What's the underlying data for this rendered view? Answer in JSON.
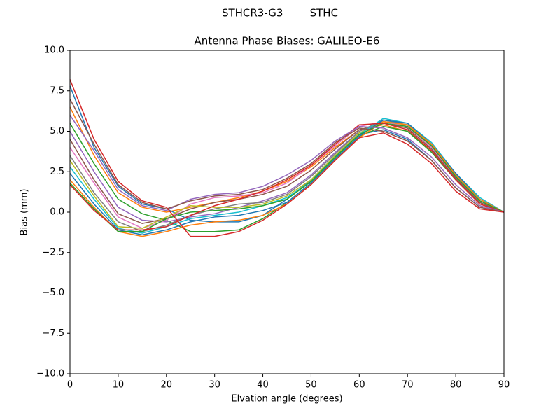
{
  "chart_data": {
    "type": "line",
    "suptitle": "STHCR3-G3        STHC",
    "title": "Antenna Phase Biases: GALILEO-E6",
    "xlabel": "Elvation angle (degrees)",
    "ylabel": "Bias (mm)",
    "x": [
      0,
      5,
      10,
      15,
      20,
      25,
      30,
      35,
      40,
      45,
      50,
      55,
      60,
      65,
      70,
      75,
      80,
      85,
      90
    ],
    "xlim": [
      0,
      90
    ],
    "xticks": [
      0,
      10,
      20,
      30,
      40,
      50,
      60,
      70,
      80,
      90
    ],
    "ylim": [
      -10,
      10
    ],
    "yticks": [
      {
        "value": -10,
        "label": "−10.0"
      },
      {
        "value": -7.5,
        "label": "−7.5"
      },
      {
        "value": -5,
        "label": "−5.0"
      },
      {
        "value": -2.5,
        "label": "−2.5"
      },
      {
        "value": 0,
        "label": "0.0"
      },
      {
        "value": 2.5,
        "label": "2.5"
      },
      {
        "value": 5,
        "label": "5.0"
      },
      {
        "value": 7.5,
        "label": "7.5"
      },
      {
        "value": 10,
        "label": "10.0"
      }
    ],
    "series": [
      {
        "color": "#1f77b4",
        "values": [
          7.8,
          4.0,
          1.6,
          0.5,
          0.2,
          -0.5,
          -0.6,
          -0.6,
          -0.2,
          0.8,
          2.0,
          3.5,
          4.8,
          5.1,
          4.5,
          3.2,
          1.5,
          0.3,
          0
        ]
      },
      {
        "color": "#ff7f0e",
        "values": [
          6.5,
          3.5,
          1.2,
          0.3,
          0.0,
          0.3,
          0.6,
          0.9,
          1.3,
          1.9,
          2.8,
          4.0,
          5.1,
          5.4,
          5.0,
          3.8,
          2.0,
          0.5,
          0
        ]
      },
      {
        "color": "#2ca02c",
        "values": [
          5.5,
          3.0,
          0.8,
          -0.1,
          -0.5,
          -1.2,
          -1.2,
          -1.1,
          -0.4,
          0.6,
          1.8,
          3.3,
          4.7,
          5.3,
          5.0,
          3.7,
          2.0,
          0.6,
          0
        ]
      },
      {
        "color": "#9467bd",
        "values": [
          5.0,
          2.5,
          0.3,
          -0.5,
          -0.6,
          -0.3,
          -0.1,
          0.3,
          0.7,
          1.2,
          2.3,
          3.7,
          5.0,
          5.6,
          5.3,
          4.0,
          2.1,
          0.6,
          0
        ]
      },
      {
        "color": "#8c564b",
        "values": [
          4.5,
          2.0,
          -0.1,
          -0.7,
          -0.4,
          0.2,
          0.6,
          0.8,
          1.1,
          1.6,
          2.6,
          3.9,
          5.1,
          5.5,
          5.2,
          3.9,
          2.1,
          0.6,
          0
        ]
      },
      {
        "color": "#e377c2",
        "values": [
          4.0,
          1.8,
          -0.3,
          -1.0,
          -0.5,
          0.5,
          0.9,
          1.0,
          1.2,
          1.8,
          2.9,
          4.1,
          5.3,
          5.6,
          5.3,
          4.0,
          2.2,
          0.7,
          0
        ]
      },
      {
        "color": "#7f7f7f",
        "values": [
          3.5,
          1.2,
          -0.6,
          -1.2,
          -0.8,
          -0.2,
          0.2,
          0.5,
          0.6,
          1.1,
          2.2,
          3.6,
          5.0,
          5.7,
          5.4,
          4.2,
          2.3,
          0.8,
          0
        ]
      },
      {
        "color": "#bcbd22",
        "values": [
          3.2,
          1.0,
          -0.9,
          -1.0,
          -0.3,
          0.4,
          0.3,
          0.3,
          0.5,
          1.0,
          2.0,
          3.5,
          4.9,
          5.6,
          5.4,
          4.1,
          2.3,
          0.8,
          0
        ]
      },
      {
        "color": "#17becf",
        "values": [
          2.8,
          0.8,
          -1.0,
          -1.3,
          -0.9,
          -0.4,
          -0.2,
          0.0,
          0.4,
          0.9,
          1.9,
          3.4,
          4.8,
          5.8,
          5.5,
          4.3,
          2.4,
          0.9,
          0
        ]
      },
      {
        "color": "#1f77b4",
        "values": [
          2.4,
          0.5,
          -1.1,
          -1.4,
          -1.1,
          -0.6,
          -0.3,
          -0.2,
          0.1,
          0.6,
          1.8,
          3.3,
          4.7,
          5.7,
          5.5,
          4.2,
          2.4,
          0.8,
          0
        ]
      },
      {
        "color": "#ff7f0e",
        "values": [
          2.0,
          0.3,
          -1.2,
          -1.5,
          -1.2,
          -0.8,
          -0.6,
          -0.5,
          -0.2,
          0.5,
          1.7,
          3.2,
          4.6,
          5.6,
          5.4,
          4.2,
          2.3,
          0.8,
          0
        ]
      },
      {
        "color": "#2ca02c",
        "values": [
          1.8,
          0.2,
          -1.2,
          -1.2,
          -0.4,
          0.0,
          0.1,
          0.2,
          0.4,
          0.8,
          1.9,
          3.4,
          4.8,
          5.5,
          5.3,
          4.1,
          2.2,
          0.7,
          0
        ]
      },
      {
        "color": "#d62728",
        "values": [
          1.7,
          0.1,
          -1.1,
          -1.1,
          -0.9,
          -0.2,
          0.4,
          0.8,
          1.3,
          2.0,
          2.9,
          4.2,
          5.4,
          5.5,
          5.1,
          3.8,
          2.0,
          0.5,
          0
        ]
      },
      {
        "color": "#9467bd",
        "values": [
          6.0,
          3.8,
          1.4,
          0.4,
          0.1,
          0.8,
          1.1,
          1.2,
          1.6,
          2.3,
          3.2,
          4.4,
          5.3,
          5.2,
          4.6,
          3.4,
          1.7,
          0.4,
          0
        ]
      },
      {
        "color": "#8c564b",
        "values": [
          7.0,
          4.2,
          1.7,
          0.6,
          0.2,
          0.7,
          1.0,
          1.1,
          1.4,
          2.1,
          3.0,
          4.3,
          5.2,
          5.0,
          4.4,
          3.2,
          1.5,
          0.3,
          0
        ]
      },
      {
        "color": "#d62728",
        "values": [
          8.2,
          4.5,
          1.9,
          0.7,
          0.3,
          -1.5,
          -1.5,
          -1.2,
          -0.5,
          0.5,
          1.7,
          3.2,
          4.6,
          4.9,
          4.2,
          3.0,
          1.3,
          0.2,
          0
        ]
      }
    ]
  }
}
